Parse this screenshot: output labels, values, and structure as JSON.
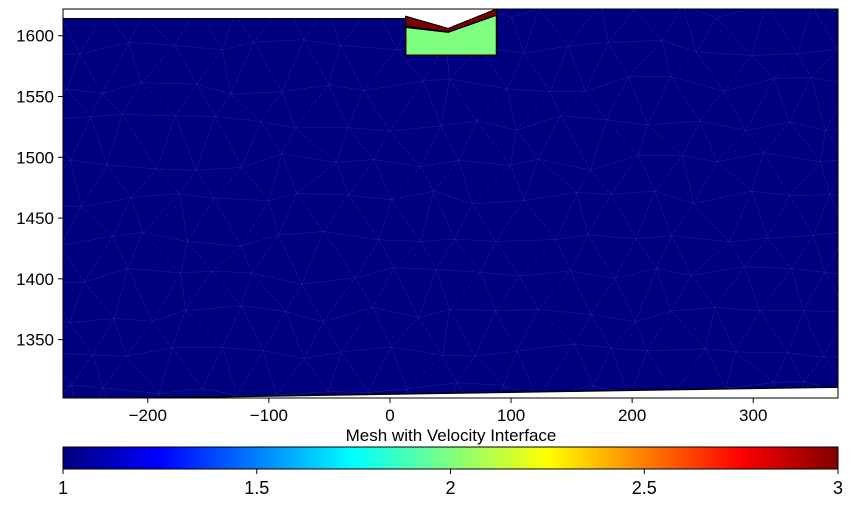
{
  "chart_data": {
    "type": "heatmap",
    "title": "",
    "xlabel": "",
    "ylabel": "",
    "xlim": [
      -270,
      370
    ],
    "ylim": [
      1302,
      1622
    ],
    "x_ticks": [
      -200,
      -100,
      0,
      100,
      200,
      300
    ],
    "y_ticks": [
      1350,
      1400,
      1450,
      1500,
      1550,
      1600
    ],
    "grid": false,
    "mesh": "triangular",
    "base_velocity": 1.0,
    "surface_left_y": 1614,
    "bottom_boundary": [
      [
        -270,
        1301
      ],
      [
        370,
        1311
      ]
    ],
    "block": {
      "velocity": 2.0,
      "x": [
        13,
        88
      ],
      "y": [
        1584,
        1607
      ],
      "top_profile": [
        [
          13,
          1607
        ],
        [
          48,
          1603
        ],
        [
          88,
          1617
        ]
      ]
    },
    "crust_layer": {
      "velocity": 3.0,
      "top_profile": [
        [
          13,
          1616
        ],
        [
          48,
          1606
        ],
        [
          88,
          1622
        ]
      ],
      "bottom_profile": [
        [
          13,
          1608
        ],
        [
          48,
          1603
        ],
        [
          88,
          1617
        ]
      ]
    },
    "colorbar": {
      "label": "Mesh with Velocity Interface",
      "min": 1,
      "max": 3,
      "ticks": [
        "1",
        "1.5",
        "2",
        "2.5",
        "3"
      ],
      "colormap": [
        "#00007f",
        "#0000ff",
        "#007fff",
        "#00ffff",
        "#7fff7f",
        "#ffff00",
        "#ff7f00",
        "#ff0000",
        "#7f0000"
      ]
    }
  }
}
